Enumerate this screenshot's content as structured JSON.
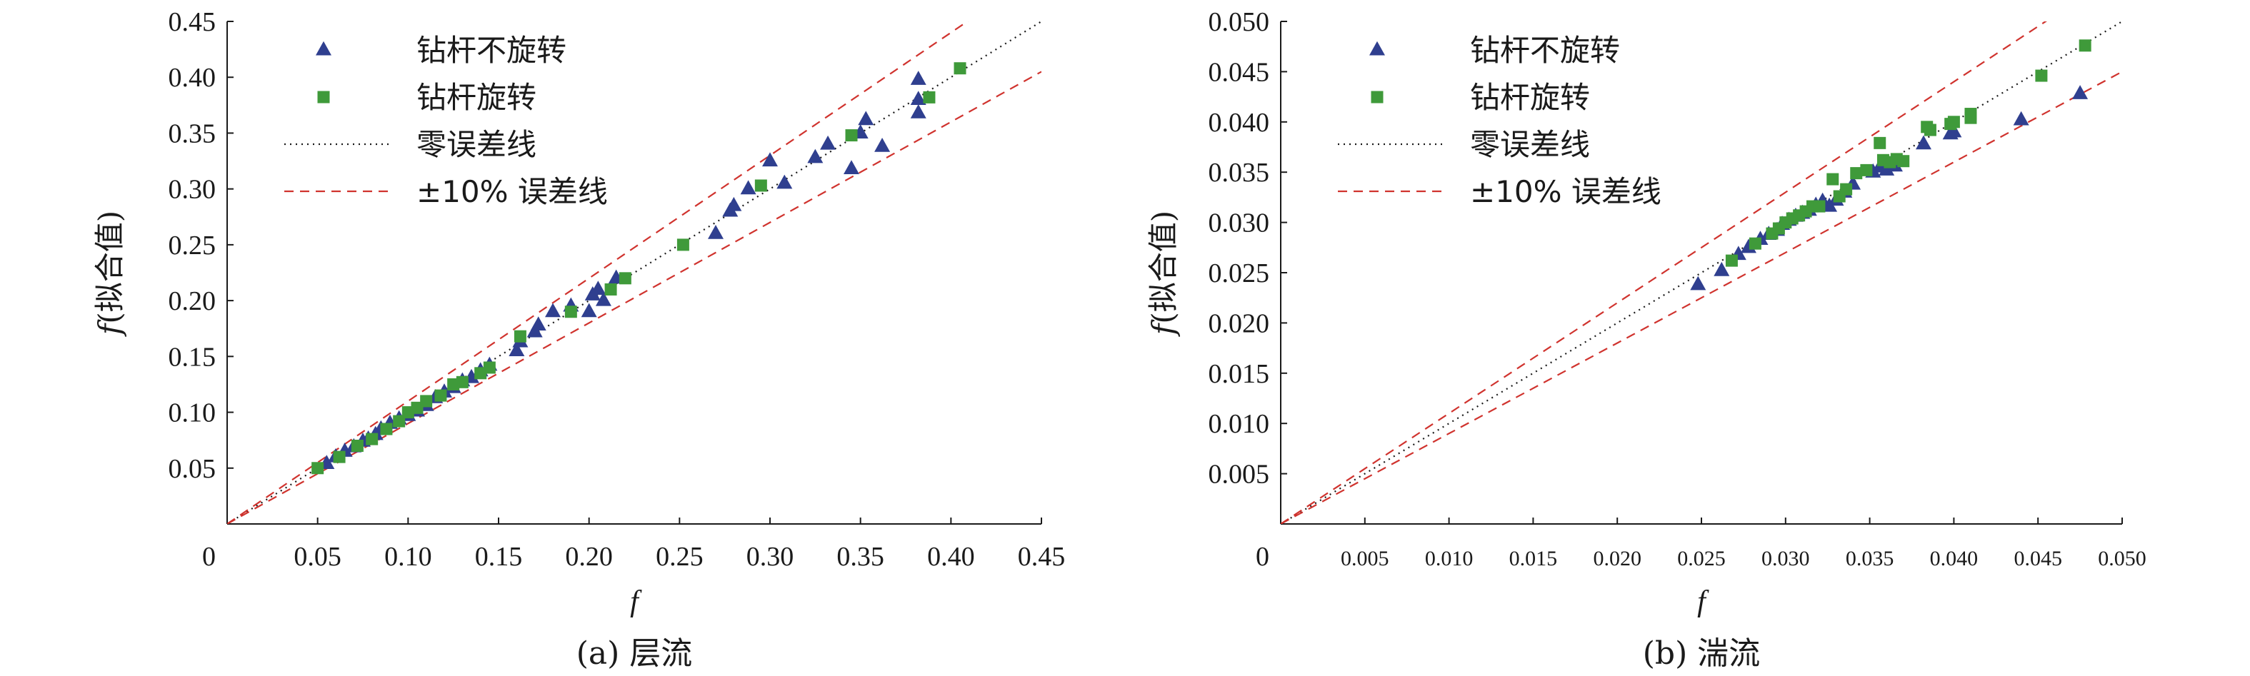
{
  "chart_data": [
    {
      "type": "scatter",
      "panel": "a",
      "caption": "(a) 层流",
      "xlabel": "f",
      "ylabel_f": "f",
      "ylabel_rest": "(拟合值)",
      "xlim": [
        0,
        0.45
      ],
      "ylim": [
        0,
        0.45
      ],
      "x_ticks": [
        "0.05",
        "0.10",
        "0.15",
        "0.20",
        "0.25",
        "0.30",
        "0.35",
        "0.40",
        "0.45"
      ],
      "y_ticks": [
        "0.05",
        "0.10",
        "0.15",
        "0.20",
        "0.25",
        "0.30",
        "0.35",
        "0.40",
        "0.45"
      ],
      "origin_label": "0",
      "legend": [
        {
          "label": "钻杆不旋转",
          "marker": "triangle"
        },
        {
          "label": "钻杆旋转",
          "marker": "square"
        },
        {
          "label": "零误差线",
          "marker": "dotted"
        },
        {
          "label": "±10% 误差线",
          "marker": "dashed"
        }
      ],
      "lines": {
        "zero_error": 1.0,
        "error_band": 0.1
      },
      "series": [
        {
          "name": "钻杆不旋转",
          "marker": "triangle",
          "color": "#2f3f8f",
          "points": [
            [
              0.055,
              0.054
            ],
            [
              0.06,
              0.06
            ],
            [
              0.065,
              0.065
            ],
            [
              0.07,
              0.069
            ],
            [
              0.075,
              0.074
            ],
            [
              0.078,
              0.076
            ],
            [
              0.082,
              0.08
            ],
            [
              0.085,
              0.085
            ],
            [
              0.09,
              0.09
            ],
            [
              0.095,
              0.094
            ],
            [
              0.1,
              0.097
            ],
            [
              0.105,
              0.101
            ],
            [
              0.11,
              0.106
            ],
            [
              0.115,
              0.113
            ],
            [
              0.12,
              0.118
            ],
            [
              0.125,
              0.122
            ],
            [
              0.13,
              0.128
            ],
            [
              0.135,
              0.131
            ],
            [
              0.14,
              0.137
            ],
            [
              0.145,
              0.142
            ],
            [
              0.16,
              0.155
            ],
            [
              0.162,
              0.163
            ],
            [
              0.17,
              0.172
            ],
            [
              0.172,
              0.178
            ],
            [
              0.18,
              0.19
            ],
            [
              0.19,
              0.195
            ],
            [
              0.2,
              0.19
            ],
            [
              0.202,
              0.205
            ],
            [
              0.205,
              0.21
            ],
            [
              0.208,
              0.2
            ],
            [
              0.215,
              0.22
            ],
            [
              0.27,
              0.26
            ],
            [
              0.278,
              0.28
            ],
            [
              0.28,
              0.285
            ],
            [
              0.288,
              0.3
            ],
            [
              0.3,
              0.325
            ],
            [
              0.308,
              0.305
            ],
            [
              0.325,
              0.328
            ],
            [
              0.332,
              0.34
            ],
            [
              0.345,
              0.318
            ],
            [
              0.35,
              0.35
            ],
            [
              0.353,
              0.362
            ],
            [
              0.362,
              0.338
            ],
            [
              0.382,
              0.398
            ],
            [
              0.382,
              0.38
            ],
            [
              0.382,
              0.368
            ]
          ]
        },
        {
          "name": "钻杆旋转",
          "marker": "square",
          "color": "#3f9a3a",
          "points": [
            [
              0.05,
              0.05
            ],
            [
              0.062,
              0.06
            ],
            [
              0.072,
              0.07
            ],
            [
              0.08,
              0.076
            ],
            [
              0.088,
              0.085
            ],
            [
              0.095,
              0.092
            ],
            [
              0.1,
              0.1
            ],
            [
              0.105,
              0.104
            ],
            [
              0.11,
              0.11
            ],
            [
              0.118,
              0.115
            ],
            [
              0.125,
              0.125
            ],
            [
              0.13,
              0.127
            ],
            [
              0.14,
              0.135
            ],
            [
              0.145,
              0.14
            ],
            [
              0.162,
              0.168
            ],
            [
              0.19,
              0.19
            ],
            [
              0.212,
              0.21
            ],
            [
              0.22,
              0.22
            ],
            [
              0.252,
              0.25
            ],
            [
              0.295,
              0.303
            ],
            [
              0.345,
              0.348
            ],
            [
              0.388,
              0.382
            ],
            [
              0.405,
              0.408
            ]
          ]
        }
      ]
    },
    {
      "type": "scatter",
      "panel": "b",
      "caption": "(b) 湍流",
      "xlabel": "f",
      "ylabel_f": "f",
      "ylabel_rest": "(拟合值)",
      "xlim": [
        0,
        0.05
      ],
      "ylim": [
        0,
        0.05
      ],
      "x_ticks": [
        "0.005",
        "0.010",
        "0.015",
        "0.020",
        "0.025",
        "0.030",
        "0.035",
        "0.040",
        "0.045",
        "0.050"
      ],
      "y_ticks": [
        "0.005",
        "0.010",
        "0.015",
        "0.020",
        "0.025",
        "0.030",
        "0.035",
        "0.040",
        "0.045",
        "0.050"
      ],
      "origin_label": "0",
      "legend": [
        {
          "label": "钻杆不旋转",
          "marker": "triangle"
        },
        {
          "label": "钻杆旋转",
          "marker": "square"
        },
        {
          "label": "零误差线",
          "marker": "dotted"
        },
        {
          "label": "±10% 误差线",
          "marker": "dashed"
        }
      ],
      "lines": {
        "zero_error": 1.0,
        "error_band": 0.1
      },
      "series": [
        {
          "name": "钻杆不旋转",
          "marker": "triangle",
          "color": "#2f3f8f",
          "points": [
            [
              0.0248,
              0.0238
            ],
            [
              0.0262,
              0.0252
            ],
            [
              0.0272,
              0.0268
            ],
            [
              0.0278,
              0.0275
            ],
            [
              0.0285,
              0.0283
            ],
            [
              0.029,
              0.0288
            ],
            [
              0.0295,
              0.0292
            ],
            [
              0.0298,
              0.0298
            ],
            [
              0.0302,
              0.0302
            ],
            [
              0.0306,
              0.0306
            ],
            [
              0.031,
              0.0309
            ],
            [
              0.0314,
              0.0312
            ],
            [
              0.0318,
              0.0317
            ],
            [
              0.0322,
              0.0321
            ],
            [
              0.0326,
              0.0316
            ],
            [
              0.033,
              0.0322
            ],
            [
              0.0335,
              0.033
            ],
            [
              0.034,
              0.0338
            ],
            [
              0.0352,
              0.035
            ],
            [
              0.0356,
              0.0355
            ],
            [
              0.036,
              0.0352
            ],
            [
              0.0365,
              0.0356
            ],
            [
              0.0382,
              0.0378
            ],
            [
              0.0398,
              0.0388
            ],
            [
              0.04,
              0.039
            ],
            [
              0.044,
              0.0402
            ],
            [
              0.0475,
              0.0428
            ]
          ]
        },
        {
          "name": "钻杆旋转",
          "marker": "square",
          "color": "#3f9a3a",
          "points": [
            [
              0.0268,
              0.0262
            ],
            [
              0.0282,
              0.0279
            ],
            [
              0.0292,
              0.0289
            ],
            [
              0.0296,
              0.0294
            ],
            [
              0.03,
              0.03
            ],
            [
              0.0304,
              0.0304
            ],
            [
              0.0308,
              0.0307
            ],
            [
              0.0312,
              0.0311
            ],
            [
              0.0316,
              0.0316
            ],
            [
              0.032,
              0.0316
            ],
            [
              0.0328,
              0.0343
            ],
            [
              0.0332,
              0.0326
            ],
            [
              0.0336,
              0.0333
            ],
            [
              0.0342,
              0.0349
            ],
            [
              0.0348,
              0.0352
            ],
            [
              0.0356,
              0.0379
            ],
            [
              0.0358,
              0.0362
            ],
            [
              0.0362,
              0.036
            ],
            [
              0.0366,
              0.0363
            ],
            [
              0.037,
              0.0361
            ],
            [
              0.0384,
              0.0395
            ],
            [
              0.0386,
              0.0392
            ],
            [
              0.0398,
              0.0398
            ],
            [
              0.04,
              0.04
            ],
            [
              0.041,
              0.0408
            ],
            [
              0.041,
              0.0404
            ],
            [
              0.0452,
              0.0446
            ],
            [
              0.0478,
              0.0476
            ]
          ]
        }
      ]
    }
  ]
}
